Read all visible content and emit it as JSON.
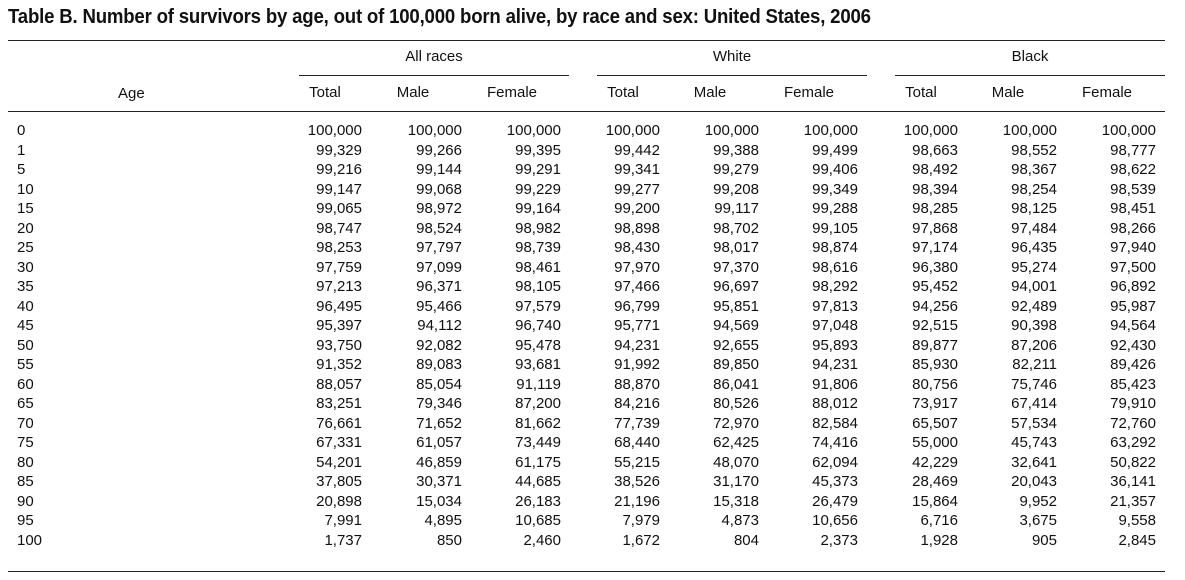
{
  "title": "Table B. Number of survivors by age, out of 100,000 born alive, by race and sex: United States, 2006",
  "age_header": "Age",
  "groups": [
    "All races",
    "White",
    "Black"
  ],
  "sub_headers": [
    "Total",
    "Male",
    "Female",
    "Total",
    "Male",
    "Female",
    "Total",
    "Male",
    "Female"
  ],
  "rows": [
    {
      "age": "0",
      "values": [
        "100,000",
        "100,000",
        "100,000",
        "100,000",
        "100,000",
        "100,000",
        "100,000",
        "100,000",
        "100,000"
      ]
    },
    {
      "age": "1",
      "values": [
        "99,329",
        "99,266",
        "99,395",
        "99,442",
        "99,388",
        "99,499",
        "98,663",
        "98,552",
        "98,777"
      ]
    },
    {
      "age": "5",
      "values": [
        "99,216",
        "99,144",
        "99,291",
        "99,341",
        "99,279",
        "99,406",
        "98,492",
        "98,367",
        "98,622"
      ]
    },
    {
      "age": "10",
      "values": [
        "99,147",
        "99,068",
        "99,229",
        "99,277",
        "99,208",
        "99,349",
        "98,394",
        "98,254",
        "98,539"
      ]
    },
    {
      "age": "15",
      "values": [
        "99,065",
        "98,972",
        "99,164",
        "99,200",
        "99,117",
        "99,288",
        "98,285",
        "98,125",
        "98,451"
      ]
    },
    {
      "age": "20",
      "values": [
        "98,747",
        "98,524",
        "98,982",
        "98,898",
        "98,702",
        "99,105",
        "97,868",
        "97,484",
        "98,266"
      ]
    },
    {
      "age": "25",
      "values": [
        "98,253",
        "97,797",
        "98,739",
        "98,430",
        "98,017",
        "98,874",
        "97,174",
        "96,435",
        "97,940"
      ]
    },
    {
      "age": "30",
      "values": [
        "97,759",
        "97,099",
        "98,461",
        "97,970",
        "97,370",
        "98,616",
        "96,380",
        "95,274",
        "97,500"
      ]
    },
    {
      "age": "35",
      "values": [
        "97,213",
        "96,371",
        "98,105",
        "97,466",
        "96,697",
        "98,292",
        "95,452",
        "94,001",
        "96,892"
      ]
    },
    {
      "age": "40",
      "values": [
        "96,495",
        "95,466",
        "97,579",
        "96,799",
        "95,851",
        "97,813",
        "94,256",
        "92,489",
        "95,987"
      ]
    },
    {
      "age": "45",
      "values": [
        "95,397",
        "94,112",
        "96,740",
        "95,771",
        "94,569",
        "97,048",
        "92,515",
        "90,398",
        "94,564"
      ]
    },
    {
      "age": "50",
      "values": [
        "93,750",
        "92,082",
        "95,478",
        "94,231",
        "92,655",
        "95,893",
        "89,877",
        "87,206",
        "92,430"
      ]
    },
    {
      "age": "55",
      "values": [
        "91,352",
        "89,083",
        "93,681",
        "91,992",
        "89,850",
        "94,231",
        "85,930",
        "82,211",
        "89,426"
      ]
    },
    {
      "age": "60",
      "values": [
        "88,057",
        "85,054",
        "91,119",
        "88,870",
        "86,041",
        "91,806",
        "80,756",
        "75,746",
        "85,423"
      ]
    },
    {
      "age": "65",
      "values": [
        "83,251",
        "79,346",
        "87,200",
        "84,216",
        "80,526",
        "88,012",
        "73,917",
        "67,414",
        "79,910"
      ]
    },
    {
      "age": "70",
      "values": [
        "76,661",
        "71,652",
        "81,662",
        "77,739",
        "72,970",
        "82,584",
        "65,507",
        "57,534",
        "72,760"
      ]
    },
    {
      "age": "75",
      "values": [
        "67,331",
        "61,057",
        "73,449",
        "68,440",
        "62,425",
        "74,416",
        "55,000",
        "45,743",
        "63,292"
      ]
    },
    {
      "age": "80",
      "values": [
        "54,201",
        "46,859",
        "61,175",
        "55,215",
        "48,070",
        "62,094",
        "42,229",
        "32,641",
        "50,822"
      ]
    },
    {
      "age": "85",
      "values": [
        "37,805",
        "30,371",
        "44,685",
        "38,526",
        "31,170",
        "45,373",
        "28,469",
        "20,043",
        "36,141"
      ]
    },
    {
      "age": "90",
      "values": [
        "20,898",
        "15,034",
        "26,183",
        "21,196",
        "15,318",
        "26,479",
        "15,864",
        "9,952",
        "21,357"
      ]
    },
    {
      "age": "95",
      "values": [
        "7,991",
        "4,895",
        "10,685",
        "7,979",
        "4,873",
        "10,656",
        "6,716",
        "3,675",
        "9,558"
      ]
    },
    {
      "age": "100",
      "values": [
        "1,737",
        "850",
        "2,460",
        "1,672",
        "804",
        "2,373",
        "1,928",
        "905",
        "2,845"
      ]
    }
  ]
}
